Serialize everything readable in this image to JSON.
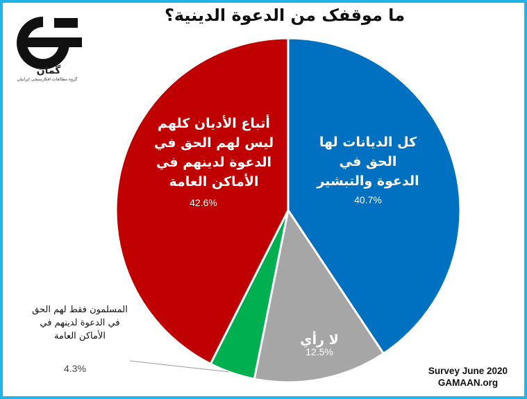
{
  "chart_data": {
    "type": "pie",
    "title": "ما موقفک من الدعوة الدینیة؟",
    "slices": [
      {
        "label": "کل الدیانات لها الحق في الدعوة والتبشیر",
        "value": 40.7,
        "value_label": "40.7%",
        "color": "#0070c0"
      },
      {
        "label": "لا رأي",
        "value": 12.5,
        "value_label": "12.5%",
        "color": "#a6a6a6"
      },
      {
        "label": "المسلمون فقط لهم الحق في الدعوة لدینهم في الأماکن العامة",
        "value": 4.3,
        "value_label": "4.3%",
        "color": "#00b050"
      },
      {
        "label": "أتباع الأدیان کلهم لیس لهم الحق في الدعوة لدینهم في الأماکن العامة",
        "value": 42.6,
        "value_label": "42.6%",
        "color": "#c00000"
      }
    ],
    "start_angle_deg": 0,
    "direction": "clockwise",
    "legend": "none"
  },
  "source": {
    "line1": "Survey June 2020",
    "line2": "GAMAAN.org"
  },
  "logo": {
    "word": "گمان",
    "subtitle": "گروه مطالعات افکارسنجی ایرانیان"
  },
  "colors": {
    "frame": "#1fb5e6"
  }
}
